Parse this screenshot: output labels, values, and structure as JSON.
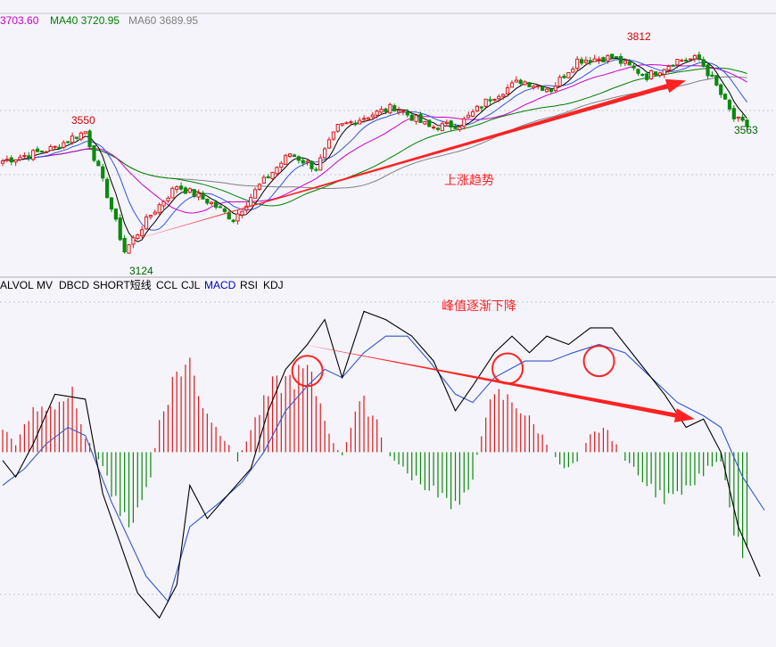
{
  "ma_legend": [
    {
      "label": "3703.60",
      "color": "#cc00cc"
    },
    {
      "label": "MA40 3720.95",
      "color": "#008000"
    },
    {
      "label": "MA60 3689.95",
      "color": "#808080"
    }
  ],
  "indicator_tabs": [
    {
      "label": "ALVOL",
      "active": false
    },
    {
      "label": "MV",
      "active": false
    },
    {
      "label": "DBCD",
      "active": false
    },
    {
      "label": "SHORT短线",
      "active": false
    },
    {
      "label": "CCL",
      "active": false
    },
    {
      "label": "CJL",
      "active": false
    },
    {
      "label": "MACD",
      "active": true
    },
    {
      "label": "RSI",
      "active": false
    },
    {
      "label": "KDJ",
      "active": false
    }
  ],
  "annotations": {
    "uptrend": "上涨趋势",
    "peaks_declining": "峰值逐渐下降"
  },
  "colors": {
    "up": "#e01818",
    "down": "#0a8a0a",
    "ma_short": "#000000",
    "ma_mid": "#3355dd",
    "ma_long": "#cc00cc",
    "ma40": "#008000",
    "ma60": "#808080",
    "arrow": "#ff2222",
    "dif": "#000000",
    "dea": "#3355cc"
  },
  "chart_data": [
    {
      "type": "candlestick",
      "title": "",
      "labels": {
        "high_first": "3550",
        "low": "3124",
        "high_second": "3812",
        "last_low": "3563"
      },
      "ylim": [
        3080,
        3880
      ],
      "trend_arrow": {
        "from": [
          28,
          3165
        ],
        "to": [
          157,
          3720
        ]
      },
      "anchors": [
        [
          0,
          3445
        ],
        [
          7,
          3470
        ],
        [
          12,
          3490
        ],
        [
          16,
          3525
        ],
        [
          19,
          3545
        ],
        [
          24,
          3330
        ],
        [
          28,
          3135
        ],
        [
          34,
          3260
        ],
        [
          40,
          3360
        ],
        [
          48,
          3300
        ],
        [
          53,
          3245
        ],
        [
          59,
          3360
        ],
        [
          66,
          3470
        ],
        [
          72,
          3420
        ],
        [
          77,
          3560
        ],
        [
          84,
          3600
        ],
        [
          90,
          3630
        ],
        [
          98,
          3560
        ],
        [
          105,
          3570
        ],
        [
          112,
          3660
        ],
        [
          119,
          3720
        ],
        [
          126,
          3690
        ],
        [
          132,
          3790
        ],
        [
          140,
          3800
        ],
        [
          148,
          3735
        ],
        [
          155,
          3790
        ],
        [
          160,
          3795
        ],
        [
          164,
          3700
        ],
        [
          168,
          3590
        ],
        [
          171,
          3565
        ]
      ]
    },
    {
      "type": "macd",
      "ylim": [
        -110,
        90
      ],
      "trend_arrow": {
        "from": [
          69,
          65
        ],
        "to": [
          159,
          20
        ]
      },
      "circles": [
        70,
        116,
        137
      ],
      "dif": [
        [
          0,
          -5
        ],
        [
          3,
          -15
        ],
        [
          7,
          5
        ],
        [
          12,
          35
        ],
        [
          19,
          32
        ],
        [
          23,
          -25
        ],
        [
          27,
          -55
        ],
        [
          31,
          -85
        ],
        [
          36,
          -100
        ],
        [
          40,
          -80
        ],
        [
          43,
          -20
        ],
        [
          47,
          -40
        ],
        [
          53,
          -22
        ],
        [
          57,
          -10
        ],
        [
          61,
          25
        ],
        [
          65,
          50
        ],
        [
          70,
          65
        ],
        [
          74,
          80
        ],
        [
          78,
          45
        ],
        [
          83,
          85
        ],
        [
          88,
          80
        ],
        [
          94,
          70
        ],
        [
          99,
          55
        ],
        [
          104,
          25
        ],
        [
          108,
          40
        ],
        [
          113,
          60
        ],
        [
          117,
          70
        ],
        [
          121,
          60
        ],
        [
          125,
          70
        ],
        [
          130,
          65
        ],
        [
          135,
          75
        ],
        [
          140,
          75
        ],
        [
          146,
          55
        ],
        [
          152,
          35
        ],
        [
          157,
          15
        ],
        [
          161,
          20
        ],
        [
          165,
          0
        ],
        [
          169,
          -45
        ],
        [
          174,
          -75
        ]
      ],
      "dea": [
        [
          0,
          -20
        ],
        [
          5,
          -10
        ],
        [
          10,
          5
        ],
        [
          15,
          15
        ],
        [
          19,
          10
        ],
        [
          25,
          -30
        ],
        [
          33,
          -75
        ],
        [
          38,
          -90
        ],
        [
          43,
          -45
        ],
        [
          50,
          -30
        ],
        [
          55,
          -18
        ],
        [
          60,
          0
        ],
        [
          65,
          25
        ],
        [
          70,
          40
        ],
        [
          74,
          50
        ],
        [
          78,
          45
        ],
        [
          83,
          60
        ],
        [
          88,
          70
        ],
        [
          93,
          70
        ],
        [
          98,
          55
        ],
        [
          104,
          35
        ],
        [
          108,
          30
        ],
        [
          113,
          45
        ],
        [
          120,
          55
        ],
        [
          126,
          55
        ],
        [
          131,
          60
        ],
        [
          137,
          65
        ],
        [
          143,
          60
        ],
        [
          149,
          45
        ],
        [
          155,
          30
        ],
        [
          161,
          22
        ],
        [
          165,
          15
        ],
        [
          170,
          -15
        ],
        [
          175,
          -35
        ]
      ],
      "hist_anchors": [
        [
          0,
          15
        ],
        [
          3,
          5
        ],
        [
          7,
          25
        ],
        [
          12,
          30
        ],
        [
          16,
          35
        ],
        [
          18,
          15
        ],
        [
          21,
          0
        ],
        [
          23,
          -10
        ],
        [
          27,
          -40
        ],
        [
          31,
          -40
        ],
        [
          34,
          -15
        ],
        [
          36,
          20
        ],
        [
          40,
          50
        ],
        [
          43,
          55
        ],
        [
          46,
          30
        ],
        [
          49,
          15
        ],
        [
          52,
          5
        ],
        [
          54,
          -5
        ],
        [
          58,
          20
        ],
        [
          62,
          40
        ],
        [
          66,
          45
        ],
        [
          70,
          50
        ],
        [
          73,
          30
        ],
        [
          76,
          5
        ],
        [
          78,
          -2
        ],
        [
          81,
          25
        ],
        [
          83,
          30
        ],
        [
          86,
          20
        ],
        [
          88,
          0
        ],
        [
          90,
          -5
        ],
        [
          94,
          -15
        ],
        [
          99,
          -25
        ],
        [
          104,
          -35
        ],
        [
          108,
          -15
        ],
        [
          111,
          25
        ],
        [
          114,
          35
        ],
        [
          118,
          30
        ],
        [
          121,
          20
        ],
        [
          124,
          10
        ],
        [
          126,
          0
        ],
        [
          129,
          -10
        ],
        [
          132,
          -5
        ],
        [
          135,
          10
        ],
        [
          138,
          15
        ],
        [
          141,
          5
        ],
        [
          143,
          -5
        ],
        [
          148,
          -20
        ],
        [
          153,
          -30
        ],
        [
          157,
          -25
        ],
        [
          162,
          -10
        ],
        [
          165,
          -5
        ],
        [
          168,
          -45
        ],
        [
          171,
          -65
        ],
        [
          174,
          -70
        ]
      ]
    }
  ]
}
